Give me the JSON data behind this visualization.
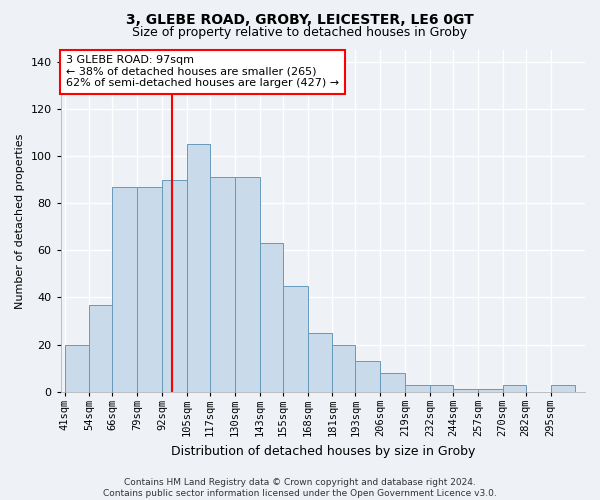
{
  "title1": "3, GLEBE ROAD, GROBY, LEICESTER, LE6 0GT",
  "title2": "Size of property relative to detached houses in Groby",
  "xlabel": "Distribution of detached houses by size in Groby",
  "ylabel": "Number of detached properties",
  "bar_labels": [
    "41sqm",
    "54sqm",
    "66sqm",
    "79sqm",
    "92sqm",
    "105sqm",
    "117sqm",
    "130sqm",
    "143sqm",
    "155sqm",
    "168sqm",
    "181sqm",
    "193sqm",
    "206sqm",
    "219sqm",
    "232sqm",
    "244sqm",
    "257sqm",
    "270sqm",
    "282sqm",
    "295sqm"
  ],
  "bar_values": [
    20,
    37,
    87,
    87,
    90,
    105,
    91,
    91,
    63,
    45,
    25,
    20,
    13,
    8,
    3,
    3,
    1,
    1,
    3,
    0,
    3
  ],
  "bar_color": "#c9daea",
  "bar_edge_color": "#6699bb",
  "vline_color": "red",
  "vline_x": 97,
  "annotation_line1": "3 GLEBE ROAD: 97sqm",
  "annotation_line2": "← 38% of detached houses are smaller (265)",
  "annotation_line3": "62% of semi-detached houses are larger (427) →",
  "annotation_box_color": "white",
  "annotation_box_edge": "red",
  "footer": "Contains HM Land Registry data © Crown copyright and database right 2024.\nContains public sector information licensed under the Open Government Licence v3.0.",
  "ylim": [
    0,
    145
  ],
  "yticks": [
    0,
    20,
    40,
    60,
    80,
    100,
    120,
    140
  ],
  "bin_edges": [
    41,
    54,
    66,
    79,
    92,
    105,
    117,
    130,
    143,
    155,
    168,
    181,
    193,
    206,
    219,
    232,
    244,
    257,
    270,
    282,
    295,
    308
  ],
  "background_color": "#eef2f7",
  "plot_background": "#eef2f7",
  "title1_fontsize": 10,
  "title2_fontsize": 9,
  "ylabel_fontsize": 8,
  "xlabel_fontsize": 9,
  "tick_fontsize": 7.5,
  "footer_fontsize": 6.5
}
